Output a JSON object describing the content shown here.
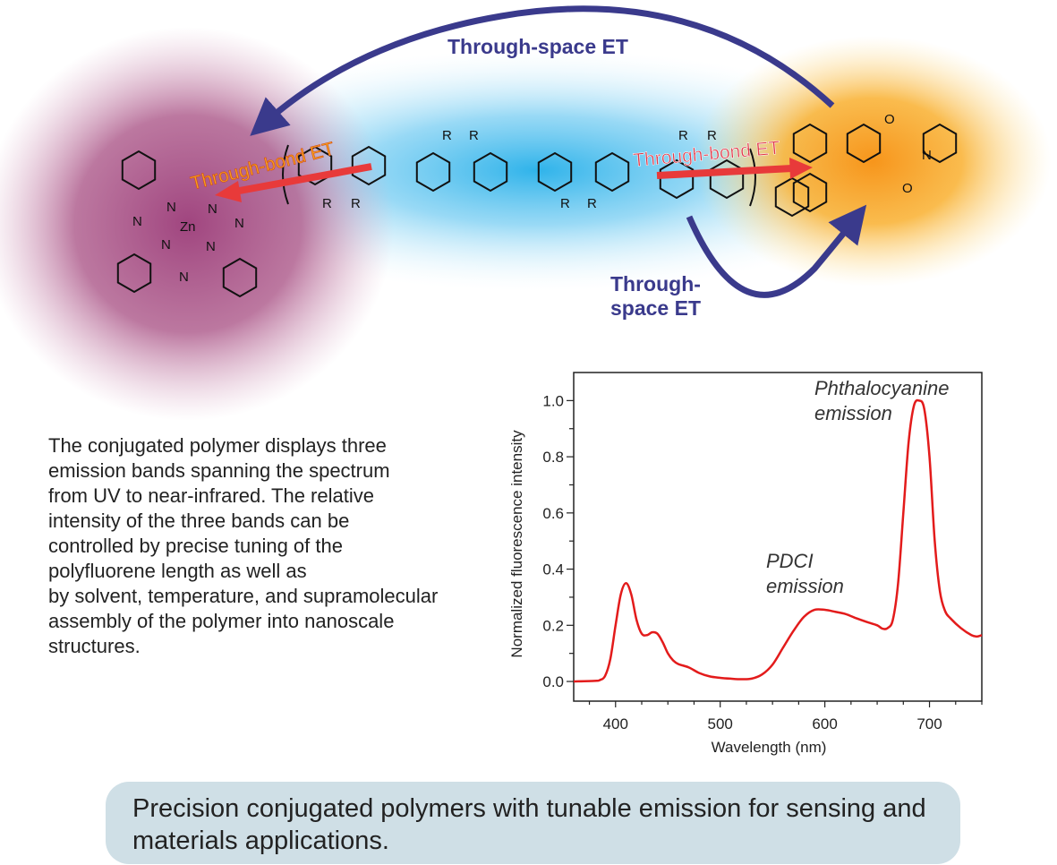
{
  "scheme": {
    "through_space_top": "Through-space ET",
    "through_space_bottom": [
      "Through-",
      "space ET"
    ],
    "through_bond_left": "Through-bond ET",
    "through_bond_right": "Through-bond ET",
    "zn_label": "Zn",
    "n_label": "N",
    "r_label": "R",
    "o_label": "O",
    "colors": {
      "phthalocyanine_glow": "#a0457f",
      "polyfluorene_glow": "#2fb3ea",
      "pdci_glow": "#f7a21b",
      "space_arrow": "#3a3a8c",
      "bond_arrow": "#e83a3a"
    }
  },
  "description_lines": [
    "The conjugated polymer displays three",
    "emission bands spanning the spectrum",
    "from UV to near-infrared. The relative",
    "intensity of the three bands can be",
    "controlled by precise tuning of the",
    "polyfluorene length as well as",
    "by solvent, temperature, and supramolecular",
    "assembly of the polymer into nanoscale",
    "structures."
  ],
  "caption": "Precision conjugated polymers with tunable emission for sensing and materials applications.",
  "chart_data": {
    "type": "line",
    "xlabel": "Wavelength (nm)",
    "ylabel": "Normalized fluorescence intensity",
    "xlim": [
      360,
      750
    ],
    "ylim": [
      -0.07,
      1.1
    ],
    "xticks": [
      400,
      500,
      600,
      700
    ],
    "yticks": [
      0.0,
      0.2,
      0.4,
      0.6,
      0.8,
      1.0
    ],
    "ytick_labels": [
      "0.0",
      "0.2",
      "0.4",
      "0.6",
      "0.8",
      "1.0"
    ],
    "grid": false,
    "line_color": "#e31b1b",
    "annotations": [
      {
        "text": [
          "Phthalocyanine",
          "emission"
        ],
        "x": 653,
        "y": 1.0
      },
      {
        "text": [
          "PDCI",
          "emission"
        ],
        "x": 540,
        "y": 0.4
      }
    ],
    "x": [
      360,
      380,
      385,
      390,
      395,
      400,
      405,
      410,
      415,
      420,
      425,
      430,
      435,
      440,
      445,
      450,
      455,
      460,
      470,
      480,
      490,
      500,
      510,
      520,
      530,
      540,
      550,
      560,
      570,
      580,
      590,
      600,
      610,
      620,
      630,
      640,
      650,
      655,
      660,
      665,
      670,
      675,
      680,
      685,
      690,
      695,
      700,
      705,
      710,
      715,
      720,
      730,
      740,
      745,
      750
    ],
    "y": [
      0,
      0.002,
      0.005,
      0.02,
      0.08,
      0.2,
      0.31,
      0.35,
      0.31,
      0.22,
      0.17,
      0.165,
      0.175,
      0.17,
      0.14,
      0.1,
      0.075,
      0.062,
      0.05,
      0.03,
      0.018,
      0.013,
      0.01,
      0.008,
      0.01,
      0.025,
      0.06,
      0.12,
      0.18,
      0.23,
      0.255,
      0.255,
      0.248,
      0.24,
      0.225,
      0.212,
      0.2,
      0.188,
      0.19,
      0.22,
      0.35,
      0.6,
      0.85,
      0.98,
      1.0,
      0.97,
      0.8,
      0.5,
      0.32,
      0.25,
      0.225,
      0.19,
      0.165,
      0.16,
      0.165
    ]
  }
}
